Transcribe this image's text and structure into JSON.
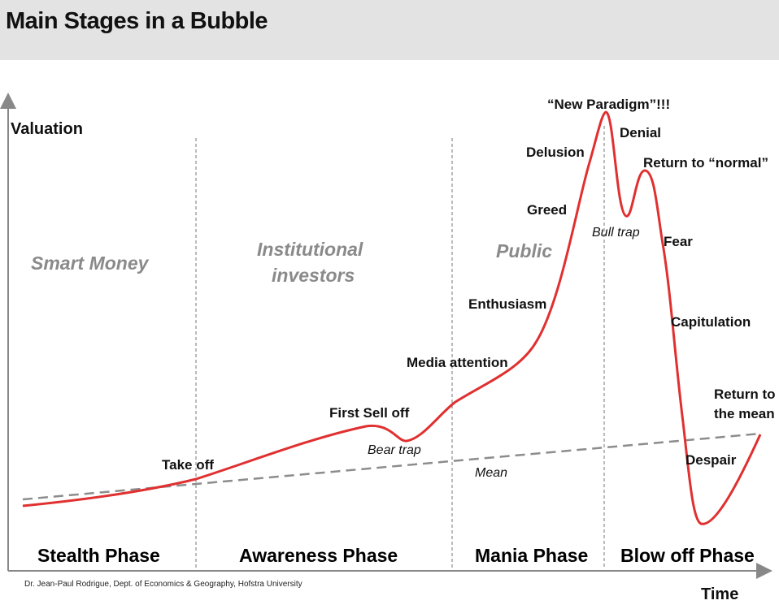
{
  "title": "Main Stages in a Bubble",
  "axes": {
    "y_label": "Valuation",
    "x_label": "Time"
  },
  "investor_groups": [
    {
      "lines": [
        "Smart Money"
      ]
    },
    {
      "lines": [
        "Institutional",
        "investors"
      ]
    },
    {
      "lines": [
        "Public"
      ]
    }
  ],
  "phases": [
    "Stealth Phase",
    "Awareness Phase",
    "Mania Phase",
    "Blow off Phase"
  ],
  "stages": {
    "take_off": "Take off",
    "first_sell_off": "First Sell off",
    "bear_trap": "Bear trap",
    "media_attention": "Media attention",
    "enthusiasm": "Enthusiasm",
    "greed": "Greed",
    "delusion": "Delusion",
    "new_paradigm": "“New Paradigm”!!!",
    "denial": "Denial",
    "bull_trap": "Bull trap",
    "return_to_normal": "Return to “normal”",
    "fear": "Fear",
    "capitulation": "Capitulation",
    "despair": "Despair",
    "return_to_mean_1": "Return to",
    "return_to_mean_2": "the mean",
    "mean": "Mean"
  },
  "credit": "Dr. Jean-Paul Rodrigue, Dept. of Economics & Geography, Hofstra University",
  "colors": {
    "curve": "#e03030",
    "mean_line": "#8c8c8c",
    "header_bg": "#e3e3e3",
    "investor_text": "#8a8a8a"
  }
}
